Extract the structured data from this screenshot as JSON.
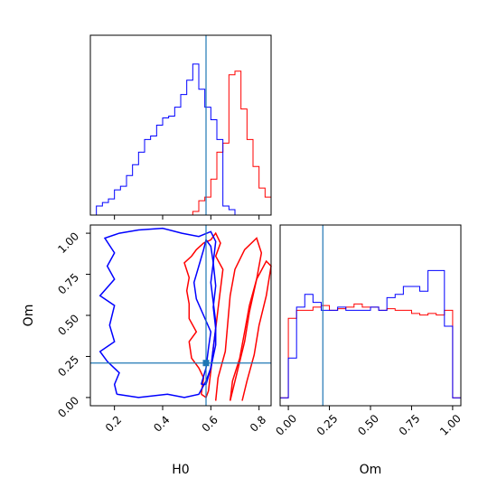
{
  "chart_data": {
    "type": "corner",
    "parameters": [
      "H0",
      "Om"
    ],
    "truths": {
      "H0": 0.58,
      "Om": 0.21
    },
    "series": [
      {
        "color": "#ff0000"
      },
      {
        "color": "#0000ff"
      }
    ],
    "truth_color": "#1f77b4",
    "panels": [
      {
        "id": "hist-h0",
        "type": "step-histogram",
        "xlim": [
          0.1,
          0.85
        ],
        "bin_edges": [
          0.1,
          0.125,
          0.15,
          0.175,
          0.2,
          0.225,
          0.25,
          0.275,
          0.3,
          0.325,
          0.35,
          0.375,
          0.4,
          0.425,
          0.45,
          0.475,
          0.5,
          0.525,
          0.55,
          0.575,
          0.6,
          0.625,
          0.65,
          0.675,
          0.7,
          0.725,
          0.75,
          0.775,
          0.8,
          0.825,
          0.85
        ],
        "counts": [
          [
            0,
            0,
            0,
            0,
            0,
            0,
            0,
            0,
            0,
            0,
            0,
            0,
            0,
            0,
            0,
            0,
            0,
            0.02,
            0.08,
            0.1,
            0.2,
            0.35,
            0.4,
            0.78,
            0.8,
            0.59,
            0.42,
            0.27,
            0.15,
            0.1
          ],
          [
            0,
            0.05,
            0.07,
            0.09,
            0.14,
            0.16,
            0.22,
            0.28,
            0.35,
            0.42,
            0.44,
            0.5,
            0.54,
            0.55,
            0.6,
            0.67,
            0.75,
            0.84,
            0.7,
            0.6,
            0.53,
            0.42,
            0.05,
            0.03,
            0,
            0,
            0,
            0,
            0,
            0
          ]
        ]
      },
      {
        "id": "contour-h0-om",
        "type": "contour",
        "xlabel": "H0",
        "ylabel": "Om",
        "xlim": [
          0.1,
          0.85
        ],
        "ylim": [
          -0.05,
          1.05
        ],
        "xticks": [
          0.2,
          0.4,
          0.6,
          0.8
        ],
        "xtick_labels": [
          "0.2",
          "0.4",
          "0.6",
          "0.8"
        ],
        "yticks": [
          0.0,
          0.25,
          0.5,
          0.75,
          1.0
        ],
        "ytick_labels": [
          "0.00",
          "0.25",
          "0.50",
          "0.75",
          "1.00"
        ],
        "contours": [
          {
            "series": 0,
            "points": [
              [
                0.62,
                -0.02
              ],
              [
                0.63,
                0.12
              ],
              [
                0.66,
                0.28
              ],
              [
                0.67,
                0.45
              ],
              [
                0.68,
                0.62
              ],
              [
                0.7,
                0.78
              ],
              [
                0.74,
                0.9
              ],
              [
                0.79,
                0.97
              ],
              [
                0.81,
                0.88
              ],
              [
                0.79,
                0.72
              ],
              [
                0.76,
                0.52
              ],
              [
                0.74,
                0.34
              ],
              [
                0.71,
                0.16
              ],
              [
                0.68,
                -0.02
              ]
            ]
          },
          {
            "series": 0,
            "points": [
              [
                0.68,
                -0.02
              ],
              [
                0.69,
                0.1
              ],
              [
                0.72,
                0.24
              ],
              [
                0.74,
                0.4
              ],
              [
                0.76,
                0.56
              ],
              [
                0.79,
                0.72
              ],
              [
                0.83,
                0.83
              ],
              [
                0.85,
                0.8
              ],
              [
                0.83,
                0.62
              ],
              [
                0.8,
                0.44
              ],
              [
                0.78,
                0.26
              ],
              [
                0.75,
                0.1
              ],
              [
                0.73,
                -0.02
              ]
            ]
          },
          {
            "series": 0,
            "points": [
              [
                0.56,
                0.02
              ],
              [
                0.57,
                0.12
              ],
              [
                0.55,
                0.18
              ],
              [
                0.52,
                0.24
              ],
              [
                0.51,
                0.34
              ],
              [
                0.54,
                0.4
              ],
              [
                0.51,
                0.48
              ],
              [
                0.51,
                0.57
              ],
              [
                0.5,
                0.65
              ],
              [
                0.51,
                0.73
              ],
              [
                0.49,
                0.82
              ],
              [
                0.52,
                0.86
              ],
              [
                0.54,
                0.9
              ],
              [
                0.57,
                0.94
              ],
              [
                0.6,
                0.96
              ],
              [
                0.62,
                1.0
              ],
              [
                0.64,
                0.94
              ],
              [
                0.62,
                0.86
              ],
              [
                0.65,
                0.78
              ],
              [
                0.64,
                0.66
              ],
              [
                0.63,
                0.54
              ],
              [
                0.62,
                0.42
              ],
              [
                0.61,
                0.3
              ],
              [
                0.6,
                0.16
              ],
              [
                0.59,
                0.04
              ],
              [
                0.58,
                0.0
              ],
              [
                0.56,
                0.02
              ]
            ]
          },
          {
            "series": 1,
            "points": [
              [
                0.21,
                0.02
              ],
              [
                0.3,
                0.0
              ],
              [
                0.42,
                0.02
              ],
              [
                0.49,
                0.0
              ],
              [
                0.55,
                0.02
              ],
              [
                0.58,
                0.1
              ],
              [
                0.6,
                0.18
              ],
              [
                0.61,
                0.3
              ],
              [
                0.62,
                0.42
              ],
              [
                0.61,
                0.55
              ],
              [
                0.62,
                0.68
              ],
              [
                0.61,
                0.82
              ],
              [
                0.62,
                0.95
              ],
              [
                0.6,
                1.01
              ],
              [
                0.55,
                0.98
              ],
              [
                0.48,
                1.0
              ],
              [
                0.4,
                1.03
              ],
              [
                0.3,
                1.02
              ],
              [
                0.22,
                1.0
              ],
              [
                0.16,
                0.97
              ],
              [
                0.2,
                0.88
              ],
              [
                0.17,
                0.8
              ],
              [
                0.2,
                0.72
              ],
              [
                0.14,
                0.62
              ],
              [
                0.2,
                0.56
              ],
              [
                0.18,
                0.44
              ],
              [
                0.2,
                0.34
              ],
              [
                0.14,
                0.28
              ],
              [
                0.17,
                0.22
              ],
              [
                0.22,
                0.15
              ],
              [
                0.2,
                0.08
              ],
              [
                0.21,
                0.02
              ]
            ]
          },
          {
            "series": 1,
            "points": [
              [
                0.56,
                0.08
              ],
              [
                0.58,
                0.18
              ],
              [
                0.59,
                0.3
              ],
              [
                0.6,
                0.4
              ],
              [
                0.57,
                0.5
              ],
              [
                0.54,
                0.6
              ],
              [
                0.53,
                0.7
              ],
              [
                0.55,
                0.8
              ],
              [
                0.57,
                0.9
              ],
              [
                0.58,
                0.96
              ],
              [
                0.6,
                0.92
              ],
              [
                0.61,
                0.82
              ],
              [
                0.6,
                0.7
              ],
              [
                0.61,
                0.58
              ],
              [
                0.62,
                0.46
              ],
              [
                0.62,
                0.32
              ],
              [
                0.6,
                0.18
              ],
              [
                0.58,
                0.08
              ],
              [
                0.56,
                0.08
              ]
            ]
          }
        ]
      },
      {
        "id": "hist-om",
        "type": "step-histogram",
        "xlabel": "Om",
        "xlim": [
          -0.05,
          1.05
        ],
        "xticks": [
          0.0,
          0.25,
          0.5,
          0.75,
          1.0
        ],
        "xtick_labels": [
          "0.00",
          "0.25",
          "0.50",
          "0.75",
          "1.00"
        ],
        "bin_edges": [
          -0.05,
          0.0,
          0.05,
          0.1,
          0.15,
          0.2,
          0.25,
          0.3,
          0.35,
          0.4,
          0.45,
          0.5,
          0.55,
          0.6,
          0.65,
          0.7,
          0.75,
          0.8,
          0.85,
          0.9,
          0.95,
          1.0,
          1.05
        ],
        "counts": [
          [
            0.05,
            0.55,
            0.6,
            0.6,
            0.62,
            0.63,
            0.6,
            0.61,
            0.62,
            0.64,
            0.62,
            0.62,
            0.6,
            0.61,
            0.6,
            0.6,
            0.58,
            0.57,
            0.58,
            0.57,
            0.6,
            0.05
          ],
          [
            0.05,
            0.3,
            0.62,
            0.7,
            0.65,
            0.6,
            0.6,
            0.62,
            0.6,
            0.6,
            0.6,
            0.62,
            0.6,
            0.68,
            0.7,
            0.75,
            0.75,
            0.72,
            0.85,
            0.85,
            0.5,
            0.05
          ]
        ]
      }
    ]
  }
}
